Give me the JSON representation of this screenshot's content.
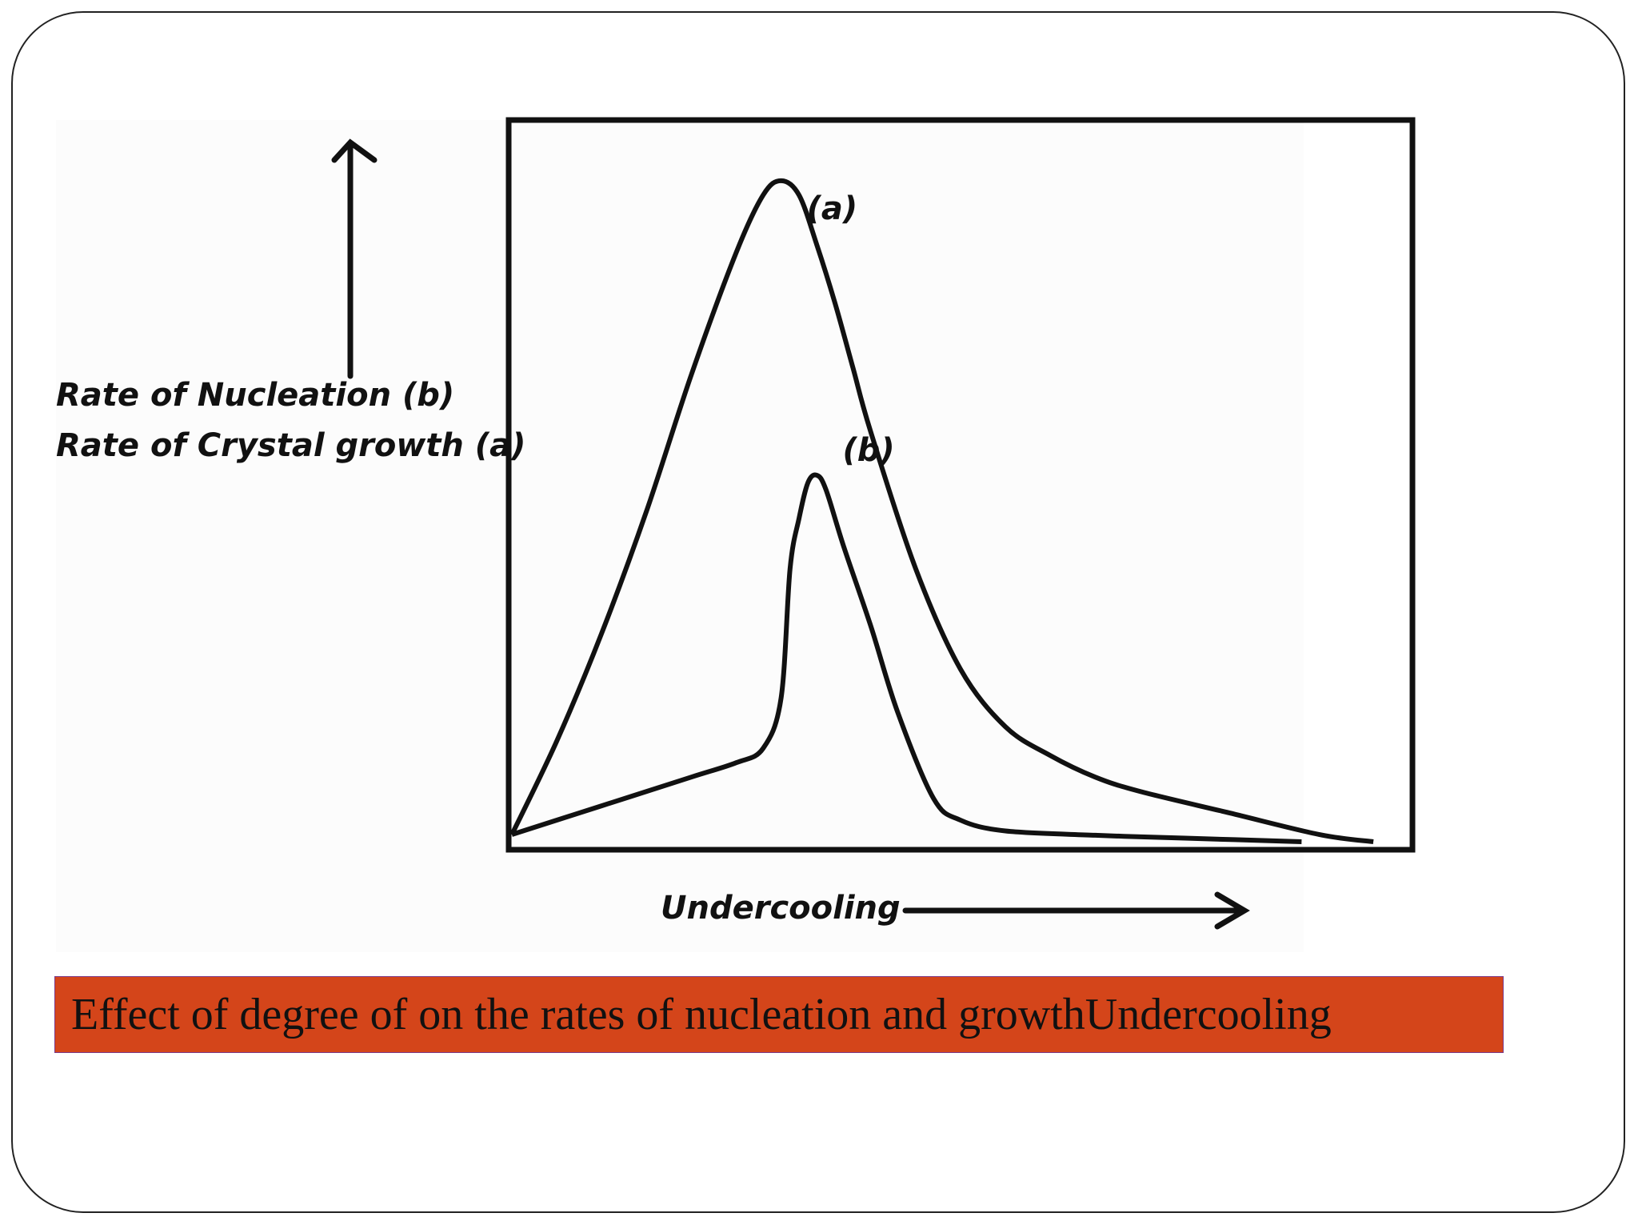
{
  "colors": {
    "banner": "#d4451a",
    "ink": "#111111",
    "frame": "#222222"
  },
  "chart_data": {
    "type": "line",
    "title": "",
    "ylabel_lines": [
      "Rate of Nucleation (b)",
      "Rate of Crystal growth (a)"
    ],
    "xlabel": "Undercooling",
    "xlim": [
      0,
      100
    ],
    "ylim": [
      0,
      100
    ],
    "grid": false,
    "series": [
      {
        "name": "(a)",
        "x": [
          0,
          5,
          10,
          15,
          20,
          25,
          28,
          30,
          32,
          34,
          36,
          38,
          40,
          45,
          50,
          55,
          60,
          65,
          70,
          80,
          90,
          96
        ],
        "y": [
          1,
          14,
          29,
          46,
          65,
          82,
          90,
          92,
          90,
          83,
          75,
          66,
          57,
          38,
          24,
          16,
          12,
          9,
          7,
          4,
          1,
          0
        ]
      },
      {
        "name": "(b)",
        "x": [
          0,
          10,
          20,
          25,
          28,
          30,
          31,
          32,
          33,
          34,
          35,
          37,
          40,
          43,
          47,
          50,
          55,
          65,
          75,
          88
        ],
        "y": [
          1,
          5,
          9,
          11,
          13,
          20,
          38,
          45,
          50,
          51,
          49,
          41,
          30,
          18,
          6,
          3,
          1.5,
          0.9,
          0.5,
          0
        ]
      }
    ]
  },
  "caption": "Effect of degree of on the rates of nucleation and growthUndercooling"
}
